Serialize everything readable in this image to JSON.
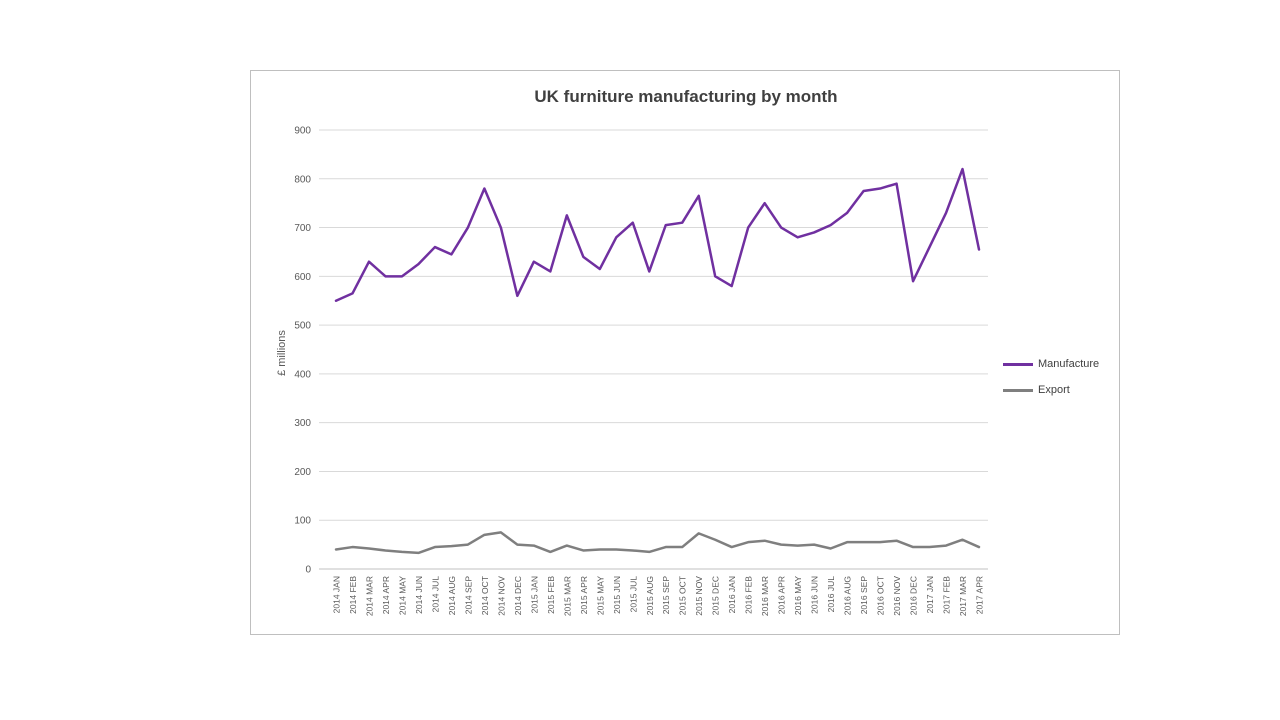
{
  "chart_data": {
    "type": "line",
    "title": "UK furniture manufacturing by month",
    "xlabel": "",
    "ylabel": "£ millions",
    "ylim": [
      0,
      900
    ],
    "ytick_step": 100,
    "grid": true,
    "legend_position": "right",
    "categories": [
      "2014 JAN",
      "2014 FEB",
      "2014 MAR",
      "2014 APR",
      "2014 MAY",
      "2014 JUN",
      "2014 JUL",
      "2014 AUG",
      "2014 SEP",
      "2014 OCT",
      "2014 NOV",
      "2014 DEC",
      "2015 JAN",
      "2015 FEB",
      "2015 MAR",
      "2015 APR",
      "2015 MAY",
      "2015 JUN",
      "2015 JUL",
      "2015 AUG",
      "2015 SEP",
      "2015 OCT",
      "2015 NOV",
      "2015 DEC",
      "2016 JAN",
      "2016 FEB",
      "2016 MAR",
      "2016 APR",
      "2016 MAY",
      "2016 JUN",
      "2016 JUL",
      "2016 AUG",
      "2016 SEP",
      "2016 OCT",
      "2016 NOV",
      "2016 DEC",
      "2017 JAN",
      "2017 FEB",
      "2017 MAR",
      "2017 APR"
    ],
    "series": [
      {
        "name": "Manufacture",
        "color": "#7030a0",
        "values": [
          550,
          565,
          630,
          600,
          600,
          625,
          660,
          645,
          700,
          780,
          700,
          560,
          630,
          610,
          725,
          640,
          615,
          680,
          710,
          610,
          705,
          710,
          765,
          600,
          580,
          700,
          750,
          700,
          680,
          690,
          705,
          730,
          775,
          780,
          790,
          590,
          660,
          730,
          820,
          655
        ]
      },
      {
        "name": "Export",
        "color": "#7f7f7f",
        "values": [
          40,
          45,
          42,
          38,
          35,
          33,
          45,
          47,
          50,
          70,
          75,
          50,
          48,
          35,
          48,
          38,
          40,
          40,
          38,
          35,
          45,
          45,
          73,
          60,
          45,
          55,
          58,
          50,
          48,
          50,
          42,
          55,
          55,
          55,
          58,
          45,
          45,
          48,
          60,
          45
        ]
      }
    ]
  }
}
